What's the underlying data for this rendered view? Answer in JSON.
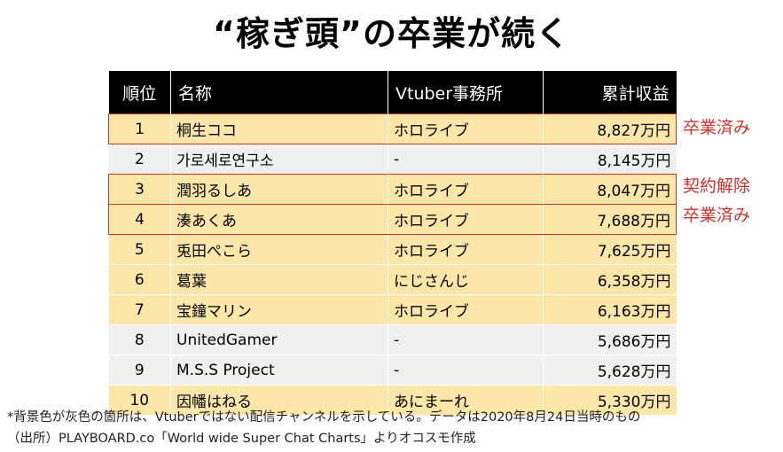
{
  "title": "“稼ぎ頭”の卒業が続く",
  "table": {
    "headers": [
      "順位",
      "名称",
      "Vtuber事務所",
      "累計収益"
    ],
    "rows": [
      {
        "rank": "1",
        "name": "桐生ココ",
        "office": "ホロライブ",
        "amount": "8,827万円",
        "bg": "yellow",
        "note": "卒業済み"
      },
      {
        "rank": "2",
        "name": "가로세로연구소",
        "office": "-",
        "amount": "8,145万円",
        "bg": "gray",
        "note": ""
      },
      {
        "rank": "3",
        "name": "潤羽るしあ",
        "office": "ホロライブ",
        "amount": "8,047万円",
        "bg": "yellow",
        "note": "契約解除"
      },
      {
        "rank": "4",
        "name": "湊あくあ",
        "office": "ホロライブ",
        "amount": "7,688万円",
        "bg": "yellow",
        "note": "卒業済み"
      },
      {
        "rank": "5",
        "name": "兎田ぺこら",
        "office": "ホロライブ",
        "amount": "7,625万円",
        "bg": "yellow",
        "note": ""
      },
      {
        "rank": "6",
        "name": "葛葉",
        "office": "にじさんじ",
        "amount": "6,358万円",
        "bg": "yellow",
        "note": ""
      },
      {
        "rank": "7",
        "name": "宝鐘マリン",
        "office": "ホロライブ",
        "amount": "6,163万円",
        "bg": "yellow",
        "note": ""
      },
      {
        "rank": "8",
        "name": "UnitedGamer",
        "office": "-",
        "amount": "5,686万円",
        "bg": "gray",
        "note": ""
      },
      {
        "rank": "9",
        "name": "M.S.S Project",
        "office": "-",
        "amount": "5,628万円",
        "bg": "gray",
        "note": ""
      },
      {
        "rank": "10",
        "name": "因幡はねる",
        "office": "あにまーれ",
        "amount": "5,330万円",
        "bg": "yellow",
        "note": ""
      }
    ]
  },
  "footnotes": [
    "*背景色が灰色の箇所は、Vtuberではない配信チャンネルを示している。データは2020年8月24日当時のもの",
    "（出所）PLAYBOARD.co「World wide Super Chat Charts」よりオコスモ作成"
  ],
  "colors": {
    "header_bg": "#000000",
    "row_yellow": "#fde7a8",
    "row_gray": "#f0f0f0",
    "highlight_red": "#d0312d"
  }
}
